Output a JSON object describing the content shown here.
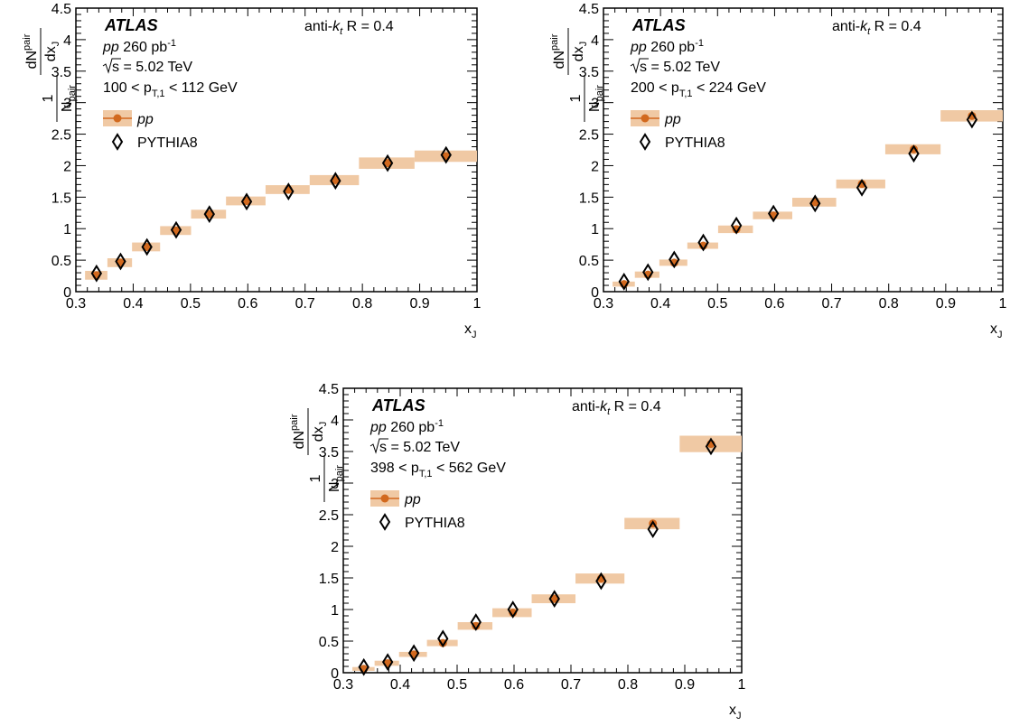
{
  "chart_data": [
    {
      "type": "scatter",
      "experiment": "ATLAS",
      "algorithm_text": {
        "pre": "anti-",
        "k": "k",
        "sub": "t",
        "post": " R = 0.4"
      },
      "lumi_text": {
        "sys": "pp",
        "mid": " 260 pb",
        "sup": "-1"
      },
      "energy_text": "s = 5.02 TeV",
      "range_text": {
        "pre": "100 < p",
        "sub": "T,1",
        "post": " < 112 GeV"
      },
      "xlabel": {
        "main": "x",
        "sub": "J"
      },
      "ylabel": {
        "one": "1",
        "N": "N",
        "pair": "pair",
        "dN": "dN",
        "dx": "dx",
        "J": "J"
      },
      "xlim": [
        0.3,
        1.0
      ],
      "ylim": [
        0,
        4.5
      ],
      "x_ticks": [
        "0.3",
        "0.4",
        "0.5",
        "0.6",
        "0.7",
        "0.8",
        "0.9",
        "1"
      ],
      "y_ticks": [
        "0",
        "0.5",
        "1",
        "1.5",
        "2",
        "2.5",
        "3",
        "3.5",
        "4",
        "4.5"
      ],
      "legend": [
        {
          "label": "pp",
          "italic": true,
          "marker": "circle"
        },
        {
          "label": "PYTHIA8",
          "italic": false,
          "marker": "open-diamond"
        }
      ],
      "series": [
        {
          "name": "pp",
          "color": "#d2691e",
          "band_color": "#f0c9a4",
          "x": [
            0.336,
            0.378,
            0.424,
            0.475,
            0.533,
            0.598,
            0.671,
            0.753,
            0.844,
            0.946
          ],
          "x_low": [
            0.316,
            0.355,
            0.398,
            0.447,
            0.501,
            0.562,
            0.631,
            0.708,
            0.794,
            0.891
          ],
          "x_high": [
            0.355,
            0.398,
            0.447,
            0.501,
            0.562,
            0.631,
            0.708,
            0.794,
            0.891,
            1.0
          ],
          "y": [
            0.26,
            0.46,
            0.71,
            0.97,
            1.23,
            1.44,
            1.62,
            1.77,
            2.04,
            2.15
          ],
          "sys": [
            0.07,
            0.07,
            0.07,
            0.07,
            0.07,
            0.07,
            0.07,
            0.08,
            0.09,
            0.09
          ]
        },
        {
          "name": "PYTHIA8",
          "color": "#000000",
          "x": [
            0.336,
            0.378,
            0.424,
            0.475,
            0.533,
            0.598,
            0.671,
            0.753,
            0.844,
            0.946
          ],
          "y": [
            0.29,
            0.48,
            0.71,
            0.98,
            1.23,
            1.43,
            1.59,
            1.76,
            2.04,
            2.17
          ]
        }
      ]
    },
    {
      "type": "scatter",
      "experiment": "ATLAS",
      "algorithm_text": {
        "pre": "anti-",
        "k": "k",
        "sub": "t",
        "post": " R = 0.4"
      },
      "lumi_text": {
        "sys": "pp",
        "mid": " 260 pb",
        "sup": "-1"
      },
      "energy_text": "s = 5.02 TeV",
      "range_text": {
        "pre": "200 < p",
        "sub": "T,1",
        "post": " < 224 GeV"
      },
      "xlabel": {
        "main": "x",
        "sub": "J"
      },
      "ylabel": {
        "one": "1",
        "N": "N",
        "pair": "pair",
        "dN": "dN",
        "dx": "dx",
        "J": "J"
      },
      "xlim": [
        0.3,
        1.0
      ],
      "ylim": [
        0,
        4.5
      ],
      "x_ticks": [
        "0.3",
        "0.4",
        "0.5",
        "0.6",
        "0.7",
        "0.8",
        "0.9",
        "1"
      ],
      "y_ticks": [
        "0",
        "0.5",
        "1",
        "1.5",
        "2",
        "2.5",
        "3",
        "3.5",
        "4",
        "4.5"
      ],
      "legend": [
        {
          "label": "pp",
          "italic": true,
          "marker": "circle"
        },
        {
          "label": "PYTHIA8",
          "italic": false,
          "marker": "open-diamond"
        }
      ],
      "series": [
        {
          "name": "pp",
          "color": "#d2691e",
          "band_color": "#f0c9a4",
          "x": [
            0.336,
            0.378,
            0.424,
            0.475,
            0.533,
            0.598,
            0.671,
            0.753,
            0.844,
            0.946
          ],
          "x_low": [
            0.316,
            0.355,
            0.398,
            0.447,
            0.501,
            0.562,
            0.631,
            0.708,
            0.794,
            0.891
          ],
          "x_high": [
            0.355,
            0.398,
            0.447,
            0.501,
            0.562,
            0.631,
            0.708,
            0.794,
            0.891,
            1.0
          ],
          "y": [
            0.12,
            0.27,
            0.46,
            0.73,
            0.99,
            1.21,
            1.42,
            1.71,
            2.26,
            2.79
          ],
          "sys": [
            0.04,
            0.05,
            0.05,
            0.05,
            0.06,
            0.06,
            0.07,
            0.07,
            0.08,
            0.09
          ]
        },
        {
          "name": "PYTHIA8",
          "color": "#000000",
          "x": [
            0.336,
            0.378,
            0.424,
            0.475,
            0.533,
            0.598,
            0.671,
            0.753,
            0.844,
            0.946
          ],
          "y": [
            0.16,
            0.31,
            0.51,
            0.78,
            1.05,
            1.24,
            1.4,
            1.65,
            2.19,
            2.73
          ]
        }
      ]
    },
    {
      "type": "scatter",
      "experiment": "ATLAS",
      "algorithm_text": {
        "pre": "anti-",
        "k": "k",
        "sub": "t",
        "post": " R = 0.4"
      },
      "lumi_text": {
        "sys": "pp",
        "mid": " 260 pb",
        "sup": "-1"
      },
      "energy_text": "s = 5.02 TeV",
      "range_text": {
        "pre": "398 < p",
        "sub": "T,1",
        "post": " < 562 GeV"
      },
      "xlabel": {
        "main": "x",
        "sub": "J"
      },
      "ylabel": {
        "one": "1",
        "N": "N",
        "pair": "pair",
        "dN": "dN",
        "dx": "dx",
        "J": "J"
      },
      "xlim": [
        0.3,
        1.0
      ],
      "ylim": [
        0,
        4.5
      ],
      "x_ticks": [
        "0.3",
        "0.4",
        "0.5",
        "0.6",
        "0.7",
        "0.8",
        "0.9",
        "1"
      ],
      "y_ticks": [
        "0",
        "0.5",
        "1",
        "1.5",
        "2",
        "2.5",
        "3",
        "3.5",
        "4",
        "4.5"
      ],
      "legend": [
        {
          "label": "pp",
          "italic": true,
          "marker": "circle"
        },
        {
          "label": "PYTHIA8",
          "italic": false,
          "marker": "open-diamond"
        }
      ],
      "series": [
        {
          "name": "pp",
          "color": "#d2691e",
          "band_color": "#f0c9a4",
          "x": [
            0.336,
            0.378,
            0.424,
            0.475,
            0.533,
            0.598,
            0.671,
            0.753,
            0.844,
            0.946
          ],
          "x_low": [
            0.316,
            0.355,
            0.398,
            0.447,
            0.501,
            0.562,
            0.631,
            0.708,
            0.794,
            0.891
          ],
          "x_high": [
            0.355,
            0.398,
            0.447,
            0.501,
            0.562,
            0.631,
            0.708,
            0.794,
            0.891,
            1.0
          ],
          "y": [
            0.06,
            0.15,
            0.29,
            0.47,
            0.74,
            0.95,
            1.17,
            1.49,
            2.36,
            3.62
          ],
          "sys": [
            0.03,
            0.04,
            0.04,
            0.05,
            0.06,
            0.07,
            0.07,
            0.08,
            0.09,
            0.13
          ]
        },
        {
          "name": "PYTHIA8",
          "color": "#000000",
          "x": [
            0.336,
            0.378,
            0.424,
            0.475,
            0.533,
            0.598,
            0.671,
            0.753,
            0.844,
            0.946
          ],
          "y": [
            0.09,
            0.17,
            0.31,
            0.54,
            0.8,
            1.0,
            1.17,
            1.45,
            2.27,
            3.58
          ]
        }
      ]
    }
  ]
}
